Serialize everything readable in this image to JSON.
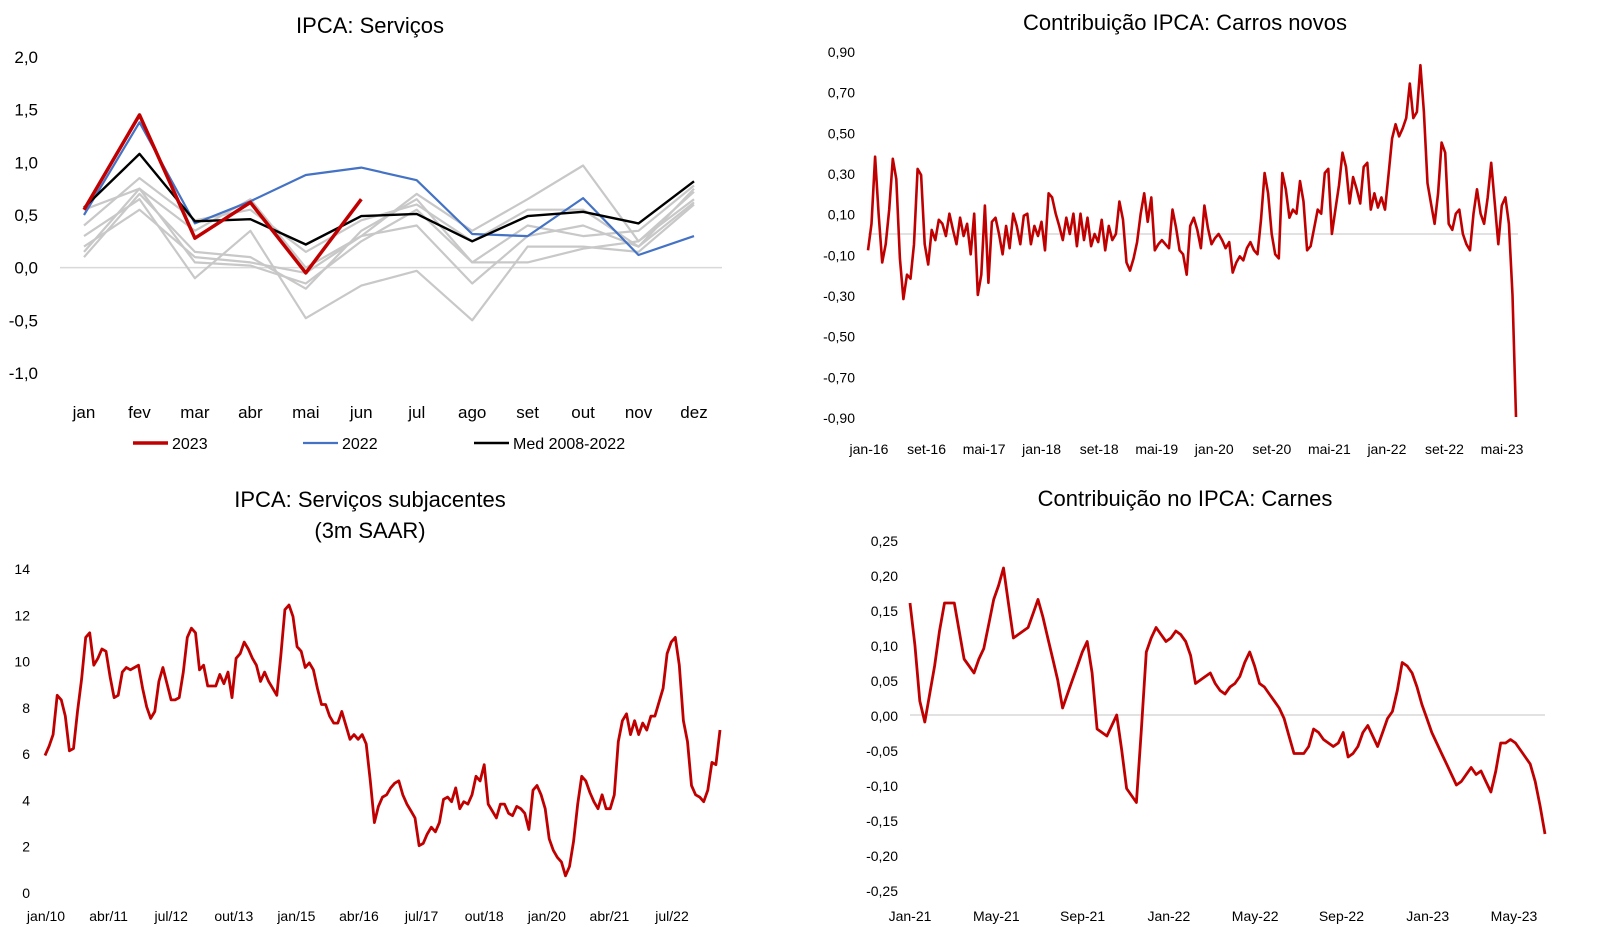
{
  "chart_data": [
    {
      "id": "servicos",
      "type": "line",
      "title": "IPCA: Serviços",
      "categories": [
        "jan",
        "fev",
        "mar",
        "abr",
        "mai",
        "jun",
        "jul",
        "ago",
        "set",
        "out",
        "nov",
        "dez"
      ],
      "ylim": [
        -1.0,
        2.0
      ],
      "yticks": [
        "2,0",
        "1,5",
        "1,0",
        "0,5",
        "0,0",
        "-0,5",
        "-1,0"
      ],
      "ytick_values": [
        2.0,
        1.5,
        1.0,
        0.5,
        0.0,
        -0.5,
        -1.0
      ],
      "grid": false,
      "legend_position": "bottom",
      "background_series": [
        {
          "color": "#c8c8c8",
          "values": [
            0.55,
            0.75,
            0.35,
            0.65,
            0.0,
            0.3,
            0.7,
            0.35,
            0.65,
            0.97,
            0.25,
            0.65
          ]
        },
        {
          "color": "#c8c8c8",
          "values": [
            0.4,
            0.85,
            0.45,
            0.55,
            0.15,
            0.45,
            0.6,
            0.25,
            0.55,
            0.55,
            0.2,
            0.75
          ]
        },
        {
          "color": "#c8c8c8",
          "values": [
            0.1,
            0.7,
            0.15,
            0.1,
            -0.2,
            0.35,
            0.65,
            0.05,
            0.4,
            0.3,
            0.35,
            0.78
          ]
        },
        {
          "color": "#c8c8c8",
          "values": [
            0.3,
            0.65,
            -0.1,
            0.35,
            -0.48,
            -0.17,
            -0.03,
            -0.5,
            0.2,
            0.2,
            0.15,
            0.6
          ]
        },
        {
          "color": "#c8c8c8",
          "values": [
            0.15,
            0.75,
            0.05,
            0.02,
            -0.15,
            0.25,
            0.55,
            0.05,
            0.05,
            0.18,
            0.25,
            0.72
          ]
        },
        {
          "color": "#c8c8c8",
          "values": [
            0.2,
            0.55,
            0.1,
            0.05,
            -0.05,
            0.3,
            0.4,
            -0.15,
            0.3,
            0.4,
            0.2,
            0.62
          ]
        }
      ],
      "series": [
        {
          "name": "2023",
          "color": "#c00000",
          "width": 3.5,
          "values": [
            0.55,
            1.45,
            0.28,
            0.62,
            -0.05,
            0.65,
            null,
            null,
            null,
            null,
            null,
            null
          ]
        },
        {
          "name": "2022",
          "color": "#4472c4",
          "width": 2.2,
          "values": [
            0.5,
            1.38,
            0.42,
            0.63,
            0.88,
            0.95,
            0.83,
            0.32,
            0.3,
            0.66,
            0.12,
            0.3
          ]
        },
        {
          "name": "Med 2008-2022",
          "color": "#000000",
          "width": 2.4,
          "values": [
            0.57,
            1.08,
            0.44,
            0.46,
            0.22,
            0.49,
            0.51,
            0.25,
            0.49,
            0.53,
            0.42,
            0.82
          ]
        }
      ]
    },
    {
      "id": "carros",
      "type": "line",
      "title": "Contribuição IPCA: Carros novos",
      "ylim": [
        -0.9,
        0.9
      ],
      "yticks": [
        "0,90",
        "0,70",
        "0,50",
        "0,30",
        "0,10",
        "-0,10",
        "-0,30",
        "-0,50",
        "-0,70",
        "-0,90"
      ],
      "ytick_values": [
        0.9,
        0.7,
        0.5,
        0.3,
        0.1,
        -0.1,
        -0.3,
        -0.5,
        -0.7,
        -0.9
      ],
      "xticks": [
        "jan-16",
        "set-16",
        "mai-17",
        "jan-18",
        "set-18",
        "mai-19",
        "jan-20",
        "set-20",
        "mai-21",
        "jan-22",
        "set-22",
        "mai-23"
      ],
      "color": "#c00000",
      "series_values": [
        -0.08,
        0.05,
        0.38,
        0.1,
        -0.14,
        -0.05,
        0.12,
        0.37,
        0.27,
        -0.12,
        -0.32,
        -0.2,
        -0.22,
        -0.05,
        0.32,
        0.29,
        -0.05,
        -0.15,
        0.02,
        -0.03,
        0.07,
        0.05,
        -0.01,
        0.1,
        0.02,
        -0.05,
        0.08,
        -0.01,
        0.05,
        -0.1,
        0.1,
        -0.3,
        -0.2,
        0.14,
        -0.24,
        0.06,
        0.08,
        0.0,
        -0.1,
        0.04,
        -0.07,
        0.1,
        0.04,
        -0.05,
        0.09,
        0.1,
        -0.05,
        0.04,
        -0.01,
        0.06,
        -0.08,
        0.2,
        0.18,
        0.1,
        0.04,
        -0.03,
        0.08,
        0.0,
        0.1,
        -0.06,
        0.1,
        -0.03,
        0.08,
        -0.06,
        0.0,
        -0.04,
        0.07,
        -0.08,
        0.04,
        -0.03,
        0.0,
        0.16,
        0.07,
        -0.14,
        -0.18,
        -0.12,
        -0.04,
        0.1,
        0.2,
        0.06,
        0.18,
        -0.08,
        -0.05,
        -0.03,
        -0.05,
        -0.07,
        0.12,
        0.03,
        -0.08,
        -0.1,
        -0.2,
        0.04,
        0.08,
        0.02,
        -0.07,
        0.14,
        0.03,
        -0.05,
        -0.02,
        0.0,
        -0.03,
        -0.07,
        -0.04,
        -0.19,
        -0.14,
        -0.11,
        -0.13,
        -0.07,
        -0.04,
        -0.08,
        -0.1,
        0.07,
        0.3,
        0.2,
        0.0,
        -0.1,
        -0.12,
        0.3,
        0.22,
        0.08,
        0.12,
        0.1,
        0.26,
        0.16,
        -0.08,
        -0.06,
        0.03,
        0.12,
        0.1,
        0.3,
        0.32,
        0.0,
        0.12,
        0.24,
        0.4,
        0.33,
        0.15,
        0.28,
        0.22,
        0.15,
        0.33,
        0.35,
        0.12,
        0.2,
        0.13,
        0.18,
        0.12,
        0.29,
        0.47,
        0.54,
        0.48,
        0.52,
        0.57,
        0.74,
        0.57,
        0.6,
        0.83,
        0.6,
        0.25,
        0.15,
        0.05,
        0.2,
        0.45,
        0.4,
        0.05,
        0.02,
        0.1,
        0.12,
        0.0,
        -0.05,
        -0.08,
        0.1,
        0.22,
        0.1,
        0.05,
        0.18,
        0.35,
        0.15,
        -0.05,
        0.14,
        0.18,
        0.05,
        -0.3,
        -0.9
      ]
    },
    {
      "id": "subjacentes",
      "type": "line",
      "title_lines": [
        "IPCA: Serviços subjacentes",
        "(3m SAAR)"
      ],
      "ylim": [
        0,
        14
      ],
      "yticks": [
        "14",
        "12",
        "10",
        "8",
        "6",
        "4",
        "2",
        "0"
      ],
      "ytick_values": [
        14,
        12,
        10,
        8,
        6,
        4,
        2,
        0
      ],
      "xticks": [
        "jan/10",
        "abr/11",
        "jul/12",
        "out/13",
        "jan/15",
        "abr/16",
        "jul/17",
        "out/18",
        "jan/20",
        "abr/21",
        "jul/22"
      ],
      "color": "#c00000",
      "series_values": [
        5.9,
        6.3,
        6.8,
        8.5,
        8.3,
        7.6,
        6.1,
        6.2,
        7.8,
        9.2,
        11.0,
        11.2,
        9.8,
        10.1,
        10.5,
        10.4,
        9.3,
        8.4,
        8.5,
        9.5,
        9.7,
        9.6,
        9.7,
        9.8,
        8.8,
        8.0,
        7.5,
        7.8,
        9.1,
        9.7,
        9.0,
        8.3,
        8.3,
        8.4,
        9.5,
        11.0,
        11.4,
        11.2,
        9.6,
        9.8,
        8.9,
        8.9,
        8.9,
        9.4,
        9.0,
        9.5,
        8.4,
        10.1,
        10.3,
        10.8,
        10.5,
        10.1,
        9.8,
        9.1,
        9.5,
        9.1,
        8.8,
        8.5,
        10.2,
        12.2,
        12.4,
        11.9,
        10.6,
        10.4,
        9.7,
        9.9,
        9.6,
        8.8,
        8.1,
        8.1,
        7.6,
        7.3,
        7.3,
        7.8,
        7.2,
        6.6,
        6.8,
        6.6,
        6.8,
        6.4,
        4.8,
        3.0,
        3.7,
        4.1,
        4.2,
        4.5,
        4.7,
        4.8,
        4.2,
        3.8,
        3.5,
        3.2,
        2.0,
        2.1,
        2.5,
        2.8,
        2.6,
        3.0,
        4.0,
        4.1,
        3.9,
        4.5,
        3.6,
        3.9,
        3.8,
        4.2,
        5.0,
        4.8,
        5.5,
        3.8,
        3.5,
        3.2,
        3.8,
        3.8,
        3.4,
        3.3,
        3.7,
        3.6,
        3.4,
        2.7,
        4.4,
        4.6,
        4.2,
        3.6,
        2.3,
        1.8,
        1.5,
        1.3,
        0.7,
        1.1,
        2.2,
        3.8,
        5.0,
        4.8,
        4.3,
        3.9,
        3.6,
        4.2,
        3.6,
        3.6,
        4.2,
        6.5,
        7.4,
        7.7,
        6.8,
        7.4,
        6.8,
        7.3,
        7.0,
        7.6,
        7.6,
        8.2,
        8.8,
        10.3,
        10.8,
        11.0,
        9.8,
        7.4,
        6.5,
        4.6,
        4.2,
        4.1,
        3.9,
        4.4,
        5.6,
        5.5,
        7.0
      ]
    },
    {
      "id": "carnes",
      "type": "line",
      "title": "Contribuição no IPCA: Carnes",
      "ylim": [
        -0.25,
        0.25
      ],
      "yticks": [
        "0,25",
        "0,20",
        "0,15",
        "0,10",
        "0,05",
        "0,00",
        "-0,05",
        "-0,10",
        "-0,15",
        "-0,20",
        "-0,25"
      ],
      "ytick_values": [
        0.25,
        0.2,
        0.15,
        0.1,
        0.05,
        0.0,
        -0.05,
        -0.1,
        -0.15,
        -0.2,
        -0.25
      ],
      "xticks": [
        "Jan-21",
        "May-21",
        "Sep-21",
        "Jan-22",
        "May-22",
        "Sep-22",
        "Jan-23",
        "May-23"
      ],
      "color": "#c00000",
      "series_values": [
        0.16,
        0.1,
        0.02,
        -0.01,
        0.03,
        0.07,
        0.12,
        0.16,
        0.16,
        0.16,
        0.12,
        0.08,
        0.07,
        0.06,
        0.08,
        0.095,
        0.13,
        0.165,
        0.185,
        0.21,
        0.16,
        0.11,
        0.115,
        0.12,
        0.125,
        0.145,
        0.165,
        0.14,
        0.11,
        0.08,
        0.05,
        0.01,
        0.03,
        0.05,
        0.07,
        0.09,
        0.105,
        0.06,
        -0.02,
        -0.025,
        -0.03,
        -0.015,
        0.0,
        -0.05,
        -0.105,
        -0.115,
        -0.125,
        -0.02,
        0.09,
        0.11,
        0.125,
        0.115,
        0.105,
        0.11,
        0.12,
        0.115,
        0.105,
        0.085,
        0.045,
        0.05,
        0.055,
        0.06,
        0.045,
        0.035,
        0.03,
        0.04,
        0.045,
        0.055,
        0.075,
        0.09,
        0.07,
        0.045,
        0.04,
        0.03,
        0.02,
        0.01,
        -0.005,
        -0.03,
        -0.055,
        -0.055,
        -0.055,
        -0.045,
        -0.02,
        -0.025,
        -0.035,
        -0.04,
        -0.045,
        -0.04,
        -0.025,
        -0.06,
        -0.055,
        -0.045,
        -0.025,
        -0.015,
        -0.03,
        -0.045,
        -0.025,
        -0.005,
        0.005,
        0.035,
        0.075,
        0.07,
        0.06,
        0.04,
        0.015,
        -0.005,
        -0.025,
        -0.04,
        -0.055,
        -0.07,
        -0.085,
        -0.1,
        -0.095,
        -0.085,
        -0.075,
        -0.085,
        -0.08,
        -0.095,
        -0.11,
        -0.08,
        -0.04,
        -0.04,
        -0.035,
        -0.04,
        -0.05,
        -0.06,
        -0.07,
        -0.095,
        -0.13,
        -0.17
      ]
    }
  ]
}
